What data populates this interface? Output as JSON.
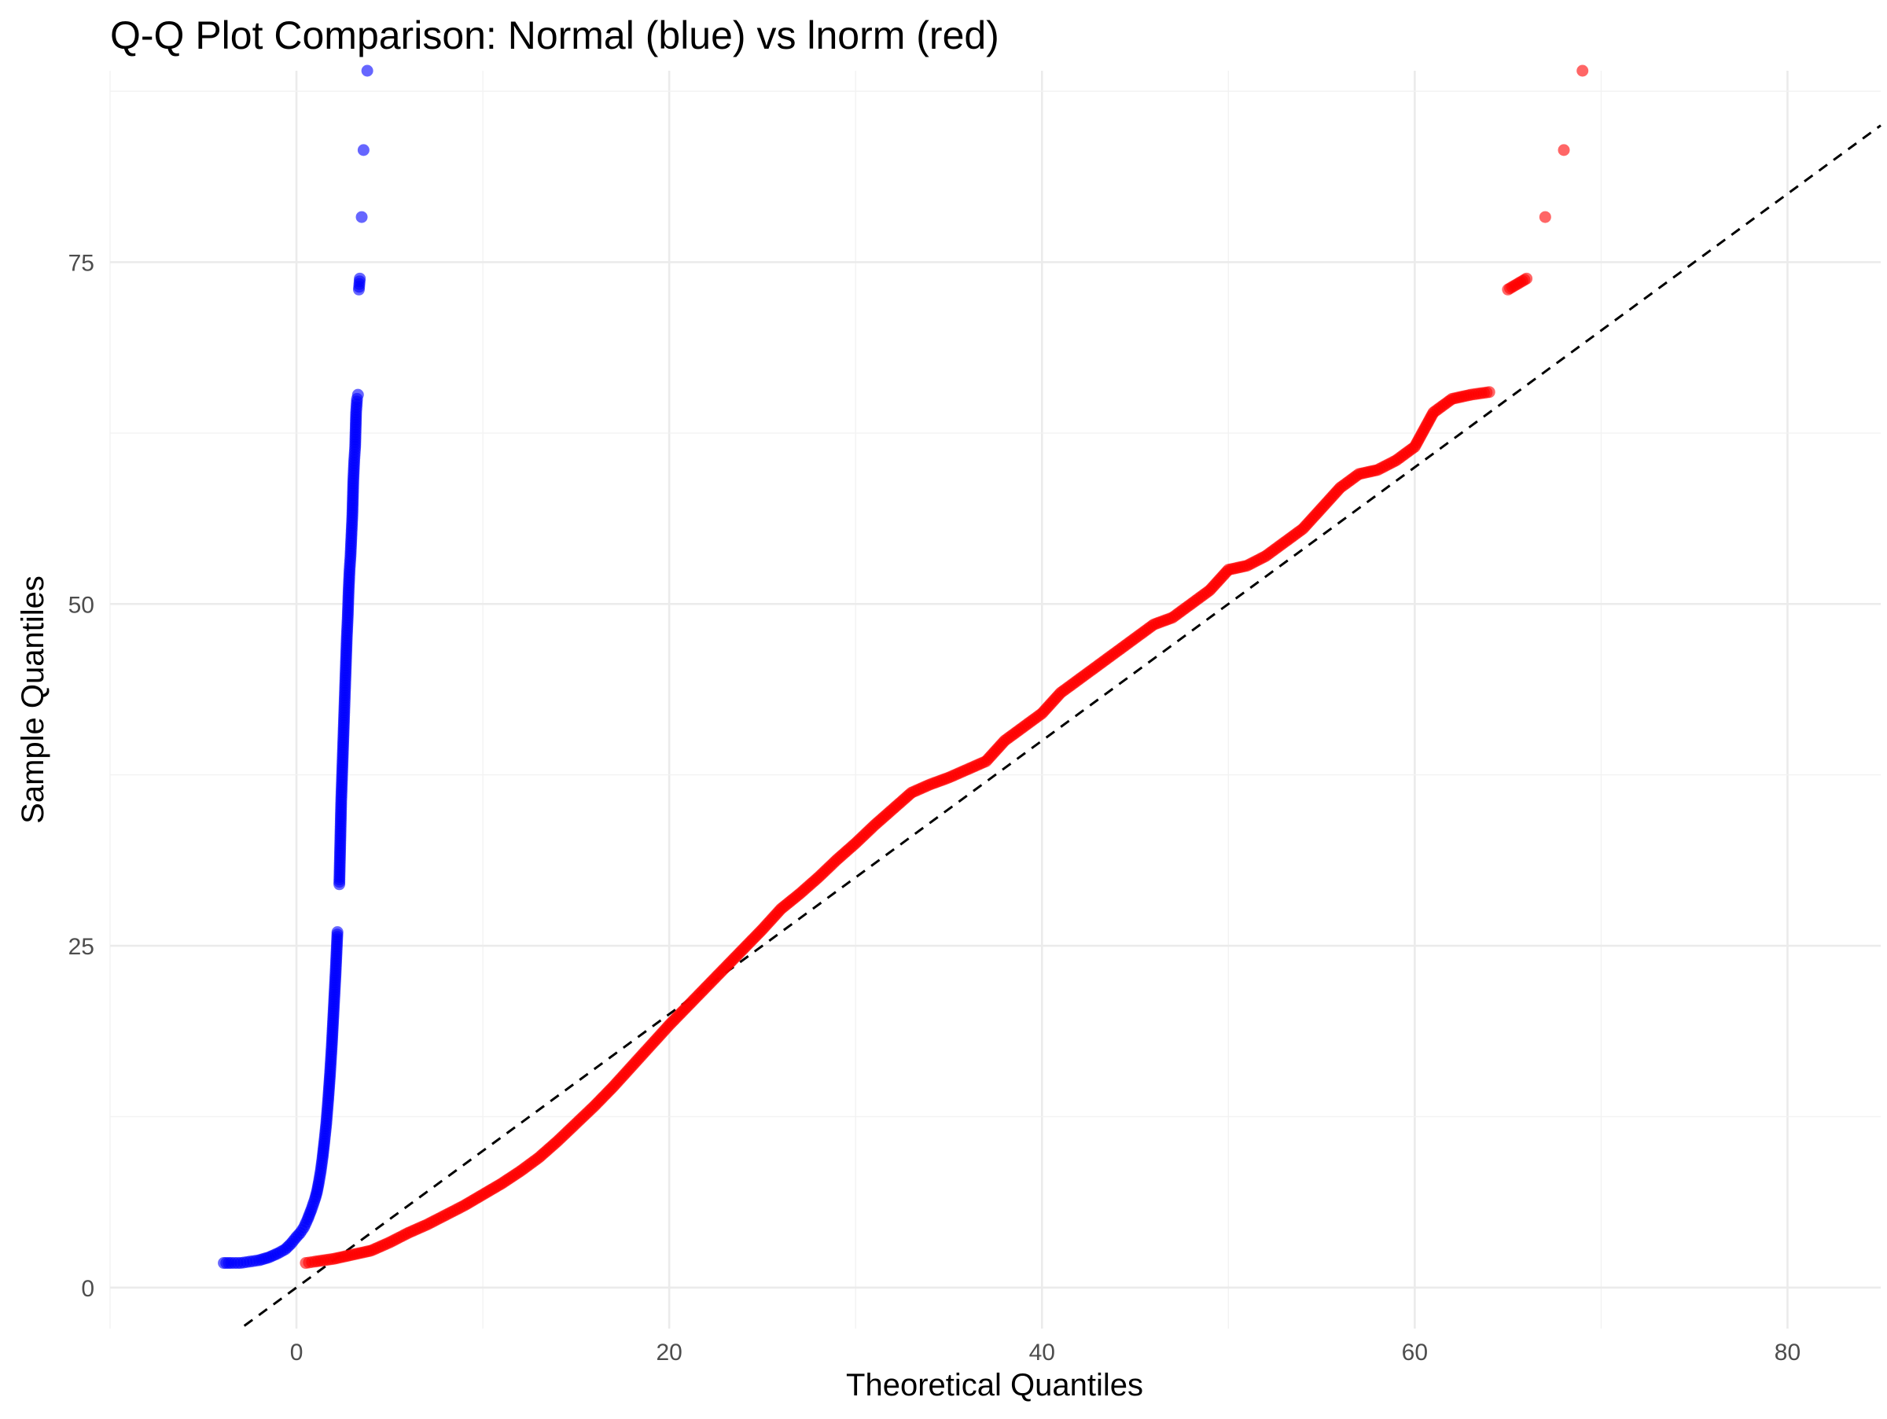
{
  "chart_data": {
    "type": "scatter",
    "title": "Q-Q Plot Comparison: Normal (blue) vs lnorm (red)",
    "xlabel": "Theoretical Quantiles",
    "ylabel": "Sample Quantiles",
    "xlim": [
      -10,
      85
    ],
    "ylim": [
      -3,
      89
    ],
    "x_ticks": [
      0,
      20,
      40,
      60,
      80
    ],
    "x_tick_labels": [
      "0",
      "20",
      "40",
      "60",
      "80"
    ],
    "y_ticks": [
      0,
      25,
      50,
      75
    ],
    "y_tick_labels": [
      "0",
      "25",
      "50",
      "75"
    ],
    "grid": true,
    "legend": "none",
    "reference_line": {
      "slope": 1,
      "intercept": 0,
      "style": "dashed",
      "color": "#000000",
      "x_range": [
        -2.8,
        85
      ]
    },
    "series": [
      {
        "color": "#0000ff",
        "opacity": 0.6,
        "description": "sample quantiles vs normal theoretical quantiles",
        "points": [
          [
            -3.9,
            1.8
          ],
          [
            -3.5,
            1.8
          ],
          [
            -3.0,
            1.8
          ],
          [
            -2.5,
            1.9
          ],
          [
            -2.0,
            2.0
          ],
          [
            -1.5,
            2.2
          ],
          [
            -1.0,
            2.5
          ],
          [
            -0.6,
            2.8
          ],
          [
            -0.3,
            3.2
          ],
          [
            0.0,
            3.7
          ],
          [
            0.2,
            4.0
          ],
          [
            0.4,
            4.4
          ],
          [
            0.6,
            5.0
          ],
          [
            0.8,
            5.7
          ],
          [
            1.0,
            6.5
          ],
          [
            1.1,
            7.0
          ],
          [
            1.2,
            7.7
          ],
          [
            1.3,
            8.5
          ],
          [
            1.4,
            9.5
          ],
          [
            1.5,
            10.7
          ],
          [
            1.6,
            12.0
          ],
          [
            1.7,
            13.7
          ],
          [
            1.8,
            15.6
          ],
          [
            1.9,
            17.8
          ],
          [
            2.0,
            20.4
          ],
          [
            2.1,
            23.0
          ],
          [
            2.2,
            26.0
          ],
          [
            2.3,
            29.5
          ],
          [
            2.35,
            32.5
          ],
          [
            2.4,
            35.5
          ],
          [
            2.45,
            37.5
          ],
          [
            2.5,
            39.5
          ],
          [
            2.55,
            41.5
          ],
          [
            2.6,
            43.5
          ],
          [
            2.65,
            45.5
          ],
          [
            2.7,
            47.5
          ],
          [
            2.75,
            49.0
          ],
          [
            2.8,
            51.0
          ],
          [
            2.85,
            52.5
          ],
          [
            2.9,
            53.5
          ],
          [
            2.95,
            55.0
          ],
          [
            3.0,
            56.5
          ],
          [
            3.05,
            59.0
          ],
          [
            3.1,
            60.5
          ],
          [
            3.15,
            61.5
          ],
          [
            3.2,
            64.0
          ],
          [
            3.25,
            65.0
          ],
          [
            3.3,
            65.3
          ],
          [
            3.35,
            73.0
          ],
          [
            3.4,
            73.8
          ],
          [
            3.5,
            78.3
          ],
          [
            3.6,
            83.2
          ],
          [
            3.8,
            89.0
          ]
        ]
      },
      {
        "color": "#ff0000",
        "opacity": 0.6,
        "description": "sample quantiles vs lognormal theoretical quantiles",
        "points": [
          [
            0.5,
            1.8
          ],
          [
            1.0,
            1.9
          ],
          [
            2.0,
            2.1
          ],
          [
            3.0,
            2.4
          ],
          [
            4.0,
            2.7
          ],
          [
            5.0,
            3.3
          ],
          [
            6.0,
            4.0
          ],
          [
            7.0,
            4.6
          ],
          [
            8.0,
            5.3
          ],
          [
            9.0,
            6.0
          ],
          [
            10.0,
            6.8
          ],
          [
            11.0,
            7.6
          ],
          [
            12.0,
            8.5
          ],
          [
            13.0,
            9.5
          ],
          [
            14.0,
            10.7
          ],
          [
            15.0,
            12.0
          ],
          [
            16.0,
            13.3
          ],
          [
            17.0,
            14.7
          ],
          [
            18.0,
            16.2
          ],
          [
            19.0,
            17.7
          ],
          [
            20.0,
            19.2
          ],
          [
            21.0,
            20.6
          ],
          [
            22.0,
            22.0
          ],
          [
            23.0,
            23.4
          ],
          [
            24.0,
            24.8
          ],
          [
            25.0,
            26.2
          ],
          [
            26.0,
            27.7
          ],
          [
            27.0,
            28.8
          ],
          [
            28.0,
            30.0
          ],
          [
            29.0,
            31.3
          ],
          [
            30.0,
            32.5
          ],
          [
            31.0,
            33.8
          ],
          [
            32.0,
            35.0
          ],
          [
            33.0,
            36.2
          ],
          [
            34.0,
            36.8
          ],
          [
            35.0,
            37.3
          ],
          [
            36.0,
            37.9
          ],
          [
            37.0,
            38.5
          ],
          [
            38.0,
            40.0
          ],
          [
            39.0,
            41.0
          ],
          [
            40.0,
            42.0
          ],
          [
            41.0,
            43.5
          ],
          [
            42.0,
            44.5
          ],
          [
            43.0,
            45.5
          ],
          [
            44.0,
            46.5
          ],
          [
            45.0,
            47.5
          ],
          [
            46.0,
            48.5
          ],
          [
            47.0,
            49.0
          ],
          [
            48.0,
            50.0
          ],
          [
            49.0,
            51.0
          ],
          [
            50.0,
            52.5
          ],
          [
            51.0,
            52.8
          ],
          [
            52.0,
            53.5
          ],
          [
            53.0,
            54.5
          ],
          [
            54.0,
            55.5
          ],
          [
            55.0,
            57.0
          ],
          [
            56.0,
            58.5
          ],
          [
            57.0,
            59.5
          ],
          [
            58.0,
            59.8
          ],
          [
            59.0,
            60.5
          ],
          [
            60.0,
            61.5
          ],
          [
            61.0,
            64.0
          ],
          [
            62.0,
            65.0
          ],
          [
            63.0,
            65.3
          ],
          [
            64.0,
            65.5
          ],
          [
            65.0,
            73.0
          ],
          [
            66.0,
            73.8
          ],
          [
            67.0,
            78.3
          ],
          [
            68.0,
            83.2
          ],
          [
            69.0,
            89.0
          ]
        ]
      }
    ]
  }
}
